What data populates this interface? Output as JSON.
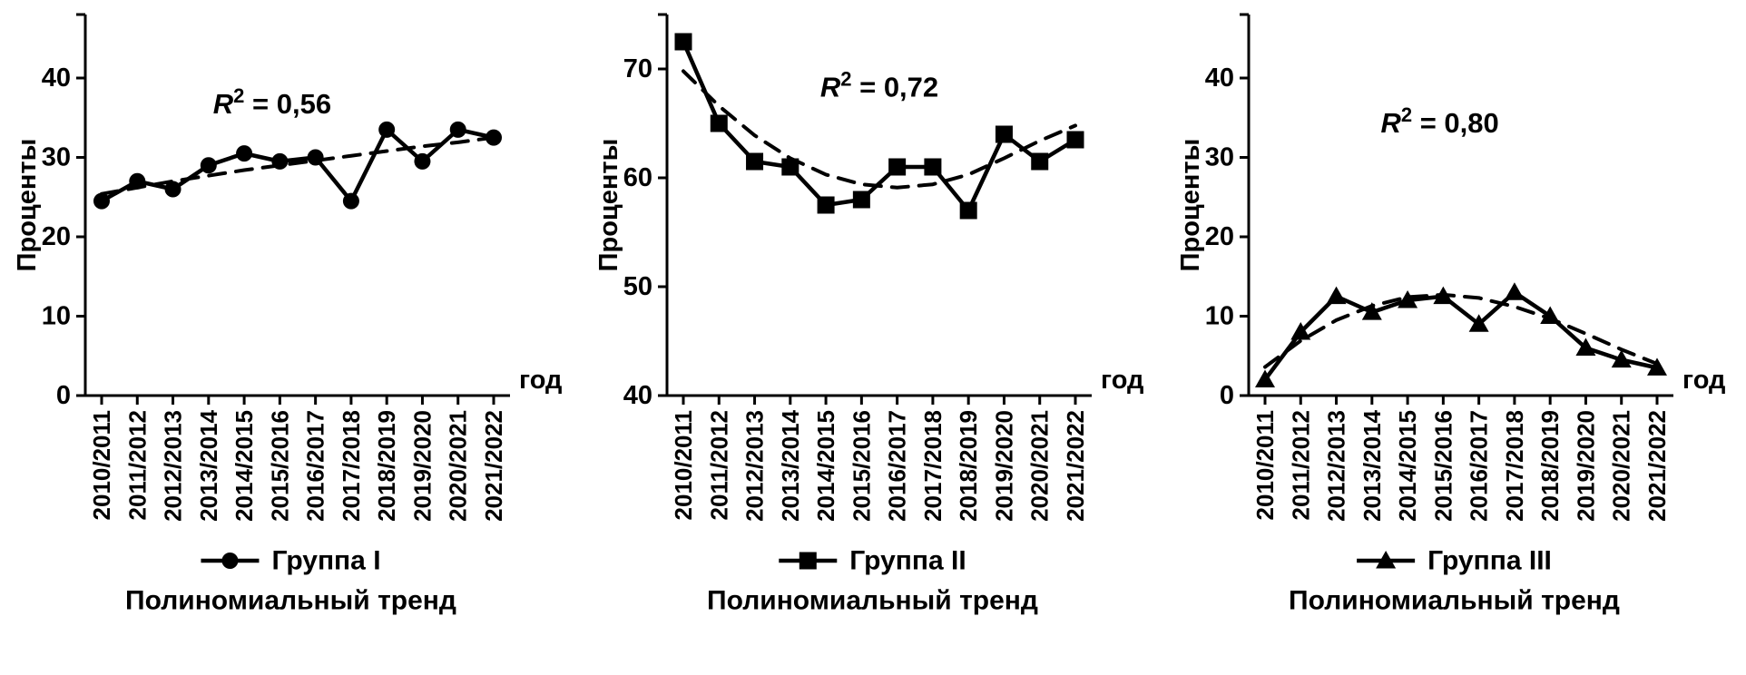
{
  "page": {
    "background": "#ffffff",
    "ink_color": "#000000"
  },
  "chart_data": [
    {
      "type": "line",
      "title": "",
      "ylabel": "Проценты",
      "xlabel": "год",
      "annotation": "R² = 0,56",
      "ylim": [
        0,
        48
      ],
      "yticks": [
        0,
        10,
        20,
        30,
        40
      ],
      "grid": false,
      "legend_position": "bottom",
      "categories": [
        "2010/2011",
        "2011/2012",
        "2012/2013",
        "2013/2014",
        "2014/2015",
        "2015/2016",
        "2016/2017",
        "2017/2018",
        "2018/2019",
        "2019/2020",
        "2020/2021",
        "2021/2022"
      ],
      "series": [
        {
          "name": "Группа I",
          "marker": "circle",
          "style": "solid",
          "values": [
            24.5,
            27,
            26,
            29,
            30.5,
            29.5,
            30,
            24.5,
            33.5,
            29.5,
            33.5,
            32.5
          ]
        },
        {
          "name": "Полиномиальный тренд",
          "marker": "none",
          "style": "dashed",
          "values": [
            25.4,
            26.2,
            27.0,
            27.7,
            28.4,
            29.0,
            29.6,
            30.2,
            30.8,
            31.4,
            31.9,
            32.5
          ]
        }
      ]
    },
    {
      "type": "line",
      "title": "",
      "ylabel": "Проценты",
      "xlabel": "год",
      "annotation": "R² = 0,72",
      "ylim": [
        40,
        75
      ],
      "yticks": [
        40,
        50,
        60,
        70
      ],
      "grid": false,
      "legend_position": "bottom",
      "categories": [
        "2010/2011",
        "2011/2012",
        "2012/2013",
        "2013/2014",
        "2014/2015",
        "2015/2016",
        "2016/2017",
        "2017/2018",
        "2018/2019",
        "2019/2020",
        "2020/2021",
        "2021/2022"
      ],
      "series": [
        {
          "name": "Группа II",
          "marker": "square",
          "style": "solid",
          "values": [
            72.5,
            65,
            61.5,
            61,
            57.5,
            58,
            61,
            61,
            57,
            64,
            61.5,
            63.5
          ]
        },
        {
          "name": "Полиномиальный тренд",
          "marker": "none",
          "style": "dashed",
          "values": [
            69.8,
            66.6,
            63.9,
            61.8,
            60.3,
            59.4,
            59.1,
            59.4,
            60.3,
            61.8,
            63.4,
            64.8
          ]
        }
      ]
    },
    {
      "type": "line",
      "title": "",
      "ylabel": "Проценты",
      "xlabel": "год",
      "annotation": "R² = 0,80",
      "ylim": [
        0,
        48
      ],
      "yticks": [
        0,
        10,
        20,
        30,
        40
      ],
      "grid": false,
      "legend_position": "bottom",
      "categories": [
        "2010/2011",
        "2011/2012",
        "2012/2013",
        "2013/2014",
        "2014/2015",
        "2015/2016",
        "2016/2017",
        "2017/2018",
        "2018/2019",
        "2019/2020",
        "2020/2021",
        "2021/2022"
      ],
      "series": [
        {
          "name": "Группа III",
          "marker": "triangle",
          "style": "solid",
          "values": [
            2,
            8,
            12.5,
            10.5,
            12,
            12.5,
            9,
            13,
            10,
            6,
            4.5,
            3.5
          ]
        },
        {
          "name": "Полиномиальный тренд",
          "marker": "none",
          "style": "dashed",
          "values": [
            3.6,
            6.9,
            9.5,
            11.3,
            12.4,
            12.7,
            12.3,
            11.2,
            9.7,
            7.8,
            5.8,
            4.0
          ]
        }
      ]
    }
  ]
}
